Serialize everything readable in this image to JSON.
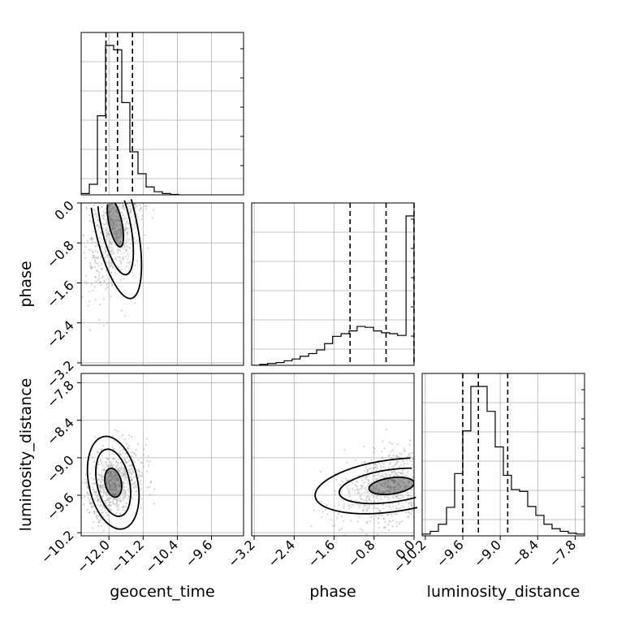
{
  "chart_data": {
    "type": "corner",
    "parameters": [
      "geocent_time",
      "phase",
      "luminosity_distance"
    ],
    "grid": true,
    "colors": {
      "hist_line": "#000000",
      "quantile_line": "#000000",
      "grid": "#b0b0b0",
      "scatter": "#808080"
    },
    "axes": {
      "geocent_time": {
        "label": "geocent_time",
        "range": [
          -12.65,
          -8.85
        ],
        "ticks": [
          -12.0,
          -11.2,
          -10.4,
          -9.6
        ],
        "tick_labels": [
          "−12.0",
          "−11.2",
          "−10.4",
          "−9.6"
        ]
      },
      "phase": {
        "label": "phase",
        "range": [
          -3.25,
          0.0
        ],
        "ticks": [
          -3.2,
          -2.4,
          -1.6,
          -0.8,
          0.0
        ],
        "tick_labels": [
          "−3.2",
          "−2.4",
          "−1.6",
          "−0.8",
          "0.0"
        ]
      },
      "luminosity_distance": {
        "label": "luminosity_distance",
        "range": [
          -10.25,
          -7.65
        ],
        "ticks": [
          -10.2,
          -9.6,
          -9.0,
          -8.4,
          -7.8
        ],
        "tick_labels": [
          "−10.2",
          "−9.6",
          "−9.0",
          "−8.4",
          "−7.8"
        ]
      }
    },
    "histograms": {
      "geocent_time": {
        "bin_edges": [
          -12.65,
          -12.46,
          -12.27,
          -12.08,
          -11.89,
          -11.7,
          -11.51,
          -11.32,
          -11.13,
          -10.94,
          -10.75,
          -10.56,
          -10.37
        ],
        "counts": [
          3,
          24,
          180,
          340,
          330,
          210,
          98,
          48,
          18,
          7,
          3,
          1
        ],
        "quantiles": [
          -12.07,
          -11.8,
          -11.45
        ]
      },
      "phase": {
        "bin_edges": [
          -3.25,
          -3.09,
          -2.93,
          -2.76,
          -2.6,
          -2.44,
          -2.28,
          -2.11,
          -1.95,
          -1.79,
          -1.63,
          -1.46,
          -1.3,
          -1.14,
          -0.98,
          -0.81,
          -0.65,
          -0.49,
          -0.33,
          -0.16,
          0.0
        ],
        "counts": [
          0,
          1,
          2,
          3,
          5,
          7,
          10,
          13,
          17,
          24,
          32,
          35,
          38,
          43,
          42,
          38,
          36,
          35,
          33,
          165
        ],
        "quantiles": [
          -1.28,
          -0.56,
          0.0
        ]
      },
      "luminosity_distance": {
        "bin_edges": [
          -10.25,
          -10.12,
          -9.99,
          -9.86,
          -9.73,
          -9.6,
          -9.47,
          -9.34,
          -9.21,
          -9.08,
          -8.95,
          -8.82,
          -8.69,
          -8.56,
          -8.43,
          -8.3,
          -8.17,
          -8.04,
          -7.91,
          -7.78,
          -7.65
        ],
        "counts": [
          2,
          5,
          13,
          32,
          70,
          118,
          168,
          168,
          140,
          100,
          68,
          52,
          50,
          33,
          23,
          13,
          8,
          5,
          3,
          2
        ],
        "quantiles": [
          -9.6,
          -9.35,
          -8.88
        ]
      }
    },
    "scatter_panels": [
      {
        "x": "geocent_time",
        "y": "phase",
        "peak": [
          -11.85,
          -0.4
        ]
      },
      {
        "x": "geocent_time",
        "y": "luminosity_distance",
        "peak": [
          -11.9,
          -9.4
        ]
      },
      {
        "x": "phase",
        "y": "luminosity_distance",
        "peak": [
          -0.45,
          -9.45
        ]
      }
    ]
  }
}
